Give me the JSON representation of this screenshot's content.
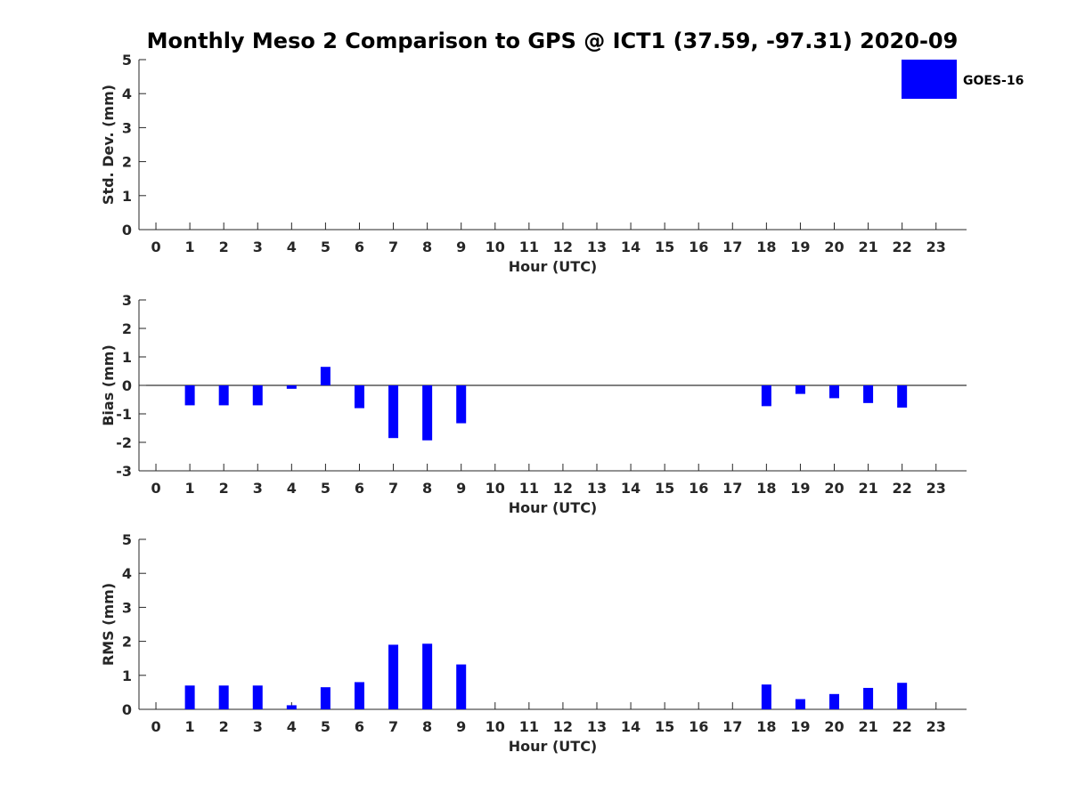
{
  "title": "Monthly Meso 2 Comparison to GPS @ ICT1 (37.59, -97.31) 2020-09",
  "legend": {
    "label": "GOES-16",
    "color": "#0000ff",
    "position": "top-right"
  },
  "chart_data": [
    {
      "type": "bar",
      "ylabel": "Std. Dev. (mm)",
      "xlabel": "Hour (UTC)",
      "ylim": [
        0,
        5
      ],
      "yticks": [
        0,
        1,
        2,
        3,
        4,
        5
      ],
      "xticks": [
        0,
        1,
        2,
        3,
        4,
        5,
        6,
        7,
        8,
        9,
        10,
        11,
        12,
        13,
        14,
        15,
        16,
        17,
        18,
        19,
        20,
        21,
        22,
        23
      ],
      "series": [
        {
          "name": "GOES-16",
          "x": [],
          "values": []
        }
      ]
    },
    {
      "type": "bar",
      "ylabel": "Bias (mm)",
      "xlabel": "Hour (UTC)",
      "ylim": [
        -3,
        3
      ],
      "yticks": [
        -3,
        -2,
        -1,
        0,
        1,
        2,
        3
      ],
      "xticks": [
        0,
        1,
        2,
        3,
        4,
        5,
        6,
        7,
        8,
        9,
        10,
        11,
        12,
        13,
        14,
        15,
        16,
        17,
        18,
        19,
        20,
        21,
        22,
        23
      ],
      "zero_line": true,
      "series": [
        {
          "name": "GOES-16",
          "x": [
            1,
            2,
            3,
            4,
            5,
            6,
            7,
            8,
            9,
            18,
            19,
            20,
            21,
            22
          ],
          "values": [
            -0.7,
            -0.7,
            -0.7,
            -0.12,
            0.65,
            -0.8,
            -1.85,
            -1.93,
            -1.33,
            -0.73,
            -0.3,
            -0.45,
            -0.62,
            -0.78
          ]
        }
      ]
    },
    {
      "type": "bar",
      "ylabel": "RMS (mm)",
      "xlabel": "Hour (UTC)",
      "ylim": [
        0,
        5
      ],
      "yticks": [
        0,
        1,
        2,
        3,
        4,
        5
      ],
      "xticks": [
        0,
        1,
        2,
        3,
        4,
        5,
        6,
        7,
        8,
        9,
        10,
        11,
        12,
        13,
        14,
        15,
        16,
        17,
        18,
        19,
        20,
        21,
        22,
        23
      ],
      "series": [
        {
          "name": "GOES-16",
          "x": [
            1,
            2,
            3,
            4,
            5,
            6,
            7,
            8,
            9,
            18,
            19,
            20,
            21,
            22
          ],
          "values": [
            0.7,
            0.7,
            0.7,
            0.12,
            0.65,
            0.8,
            1.9,
            1.93,
            1.32,
            0.73,
            0.3,
            0.45,
            0.63,
            0.78
          ]
        }
      ]
    }
  ]
}
